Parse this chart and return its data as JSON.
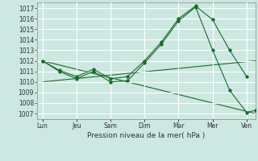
{
  "xlabel": "Pression niveau de la mer( hPa )",
  "background_color": "#cce8e0",
  "grid_color": "#ffffff",
  "line_color": "#1a6b2a",
  "ylim_min": 1006.5,
  "ylim_max": 1017.5,
  "yticks": [
    1007,
    1008,
    1009,
    1010,
    1011,
    1012,
    1013,
    1014,
    1015,
    1016,
    1017
  ],
  "xlim_min": -0.15,
  "xlim_max": 6.25,
  "x_tick_positions": [
    0,
    1,
    2,
    3,
    4,
    5,
    6
  ],
  "x_tick_labels": [
    "Lun",
    "Jeu",
    "Sam",
    "Dim",
    "Mar",
    "Mer",
    "Ven"
  ],
  "s1x": [
    0,
    0.5,
    1.0,
    1.5,
    2.0,
    2.5,
    3.0,
    3.5,
    4.0,
    4.5,
    5.0,
    5.5,
    6.0
  ],
  "s1y": [
    1012.0,
    1011.1,
    1010.5,
    1011.2,
    1010.3,
    1010.5,
    1012.0,
    1013.8,
    1016.0,
    1017.2,
    1015.9,
    1013.0,
    1010.5
  ],
  "s2x": [
    0,
    0.5,
    1.0,
    1.5,
    2.0,
    2.5,
    3.0,
    3.5,
    4.0,
    4.5,
    5.0,
    5.5,
    6.0,
    6.25
  ],
  "s2y": [
    1012.0,
    1011.0,
    1010.3,
    1011.0,
    1010.0,
    1010.1,
    1011.8,
    1013.6,
    1015.8,
    1017.1,
    1013.0,
    1009.2,
    1007.1,
    1007.3
  ],
  "t1x": [
    0,
    6.25
  ],
  "t1y": [
    1012.0,
    1007.0
  ],
  "t2x": [
    0,
    6.25
  ],
  "t2y": [
    1010.0,
    1012.0
  ],
  "xlabel_fontsize": 6.5,
  "tick_fontsize": 5.5
}
